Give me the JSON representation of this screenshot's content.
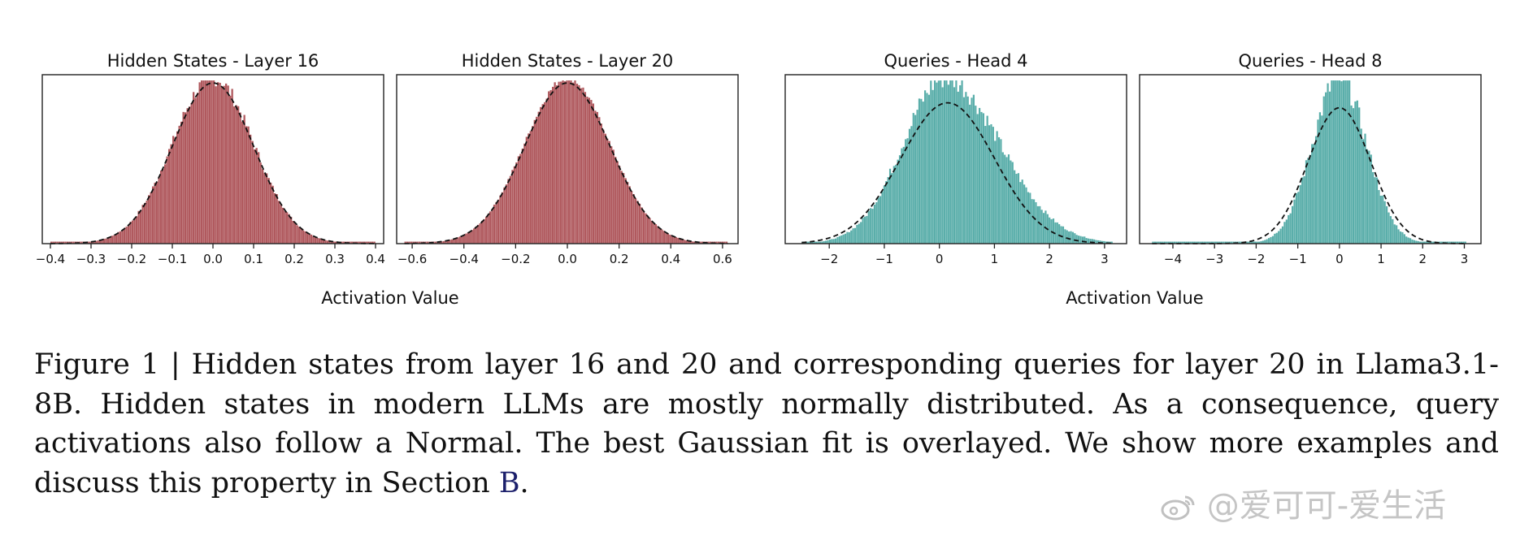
{
  "chart_data": [
    {
      "type": "bar",
      "title": "Hidden States - Layer 16",
      "color": "#b0595e",
      "fit": "gaussian",
      "x_range": [
        -0.42,
        0.42
      ],
      "xticks": [
        -0.4,
        -0.3,
        -0.2,
        -0.1,
        0.0,
        0.1,
        0.2,
        0.3,
        0.4
      ],
      "xtick_labels": [
        "−0.4",
        "−0.3",
        "−0.2",
        "−0.1",
        "0.0",
        "0.1",
        "0.2",
        "0.3",
        "0.4"
      ],
      "hist": {
        "bins": 160,
        "lo": -0.4,
        "hi": 0.4,
        "mean": 0.0,
        "std": 0.1,
        "skew": 0,
        "noise": 0.05
      },
      "fit_curve": {
        "mean": 0.0,
        "std": 0.1,
        "peak": 0.97
      }
    },
    {
      "type": "bar",
      "title": "Hidden States - Layer 20",
      "color": "#b0595e",
      "fit": "gaussian",
      "x_range": [
        -0.66,
        0.66
      ],
      "xticks": [
        -0.6,
        -0.4,
        -0.2,
        0.0,
        0.2,
        0.4,
        0.6
      ],
      "xtick_labels": [
        "−0.6",
        "−0.4",
        "−0.2",
        "0.0",
        "0.2",
        "0.4",
        "0.6"
      ],
      "hist": {
        "bins": 160,
        "lo": -0.63,
        "hi": 0.62,
        "mean": 0.0,
        "std": 0.165,
        "skew": 0,
        "noise": 0.02
      },
      "fit_curve": {
        "mean": 0.0,
        "std": 0.165,
        "peak": 0.97
      }
    },
    {
      "type": "bar",
      "title": "Queries - Head 4",
      "color": "#5aaeaa",
      "fit": "gaussian",
      "x_range": [
        -2.8,
        3.4
      ],
      "xticks": [
        -2,
        -1,
        0,
        1,
        2,
        3
      ],
      "xtick_labels": [
        "−2",
        "−1",
        "0",
        "1",
        "2",
        "3"
      ],
      "hist": {
        "bins": 160,
        "lo": -2.5,
        "hi": 3.15,
        "mean": 0.1,
        "std": 0.8,
        "skew": 0.55,
        "noise": 0.07
      },
      "fit_curve": {
        "mean": 0.15,
        "std": 0.85,
        "peak": 0.85
      }
    },
    {
      "type": "bar",
      "title": "Queries - Head 8",
      "color": "#5aaeaa",
      "fit": "gaussian",
      "x_range": [
        -4.8,
        3.4
      ],
      "xticks": [
        -4,
        -3,
        -2,
        -1,
        0,
        1,
        2,
        3
      ],
      "xtick_labels": [
        "−4",
        "−3",
        "−2",
        "−1",
        "0",
        "1",
        "2",
        "3"
      ],
      "hist": {
        "bins": 160,
        "lo": -4.5,
        "hi": 3.05,
        "mean": 0.0,
        "std": 0.65,
        "skew": 0.0,
        "noise": 0.08
      },
      "fit_curve": {
        "mean": 0.0,
        "std": 0.75,
        "peak": 0.82
      }
    }
  ],
  "group_labels": {
    "left": "Activation Value",
    "right": "Activation Value"
  },
  "caption": {
    "text_before_ref": "Figure 1 | Hidden states from layer 16 and 20 and corresponding queries for layer 20 in Llama3.1-8B. Hidden states in modern LLMs are mostly normally distributed. As a consequence, query activations also follow a Normal. The best Gaussian fit is overlayed. We show more examples and discuss this property in Section ",
    "ref": "B",
    "text_after_ref": "."
  },
  "watermark": "@爱可可-爱生活"
}
